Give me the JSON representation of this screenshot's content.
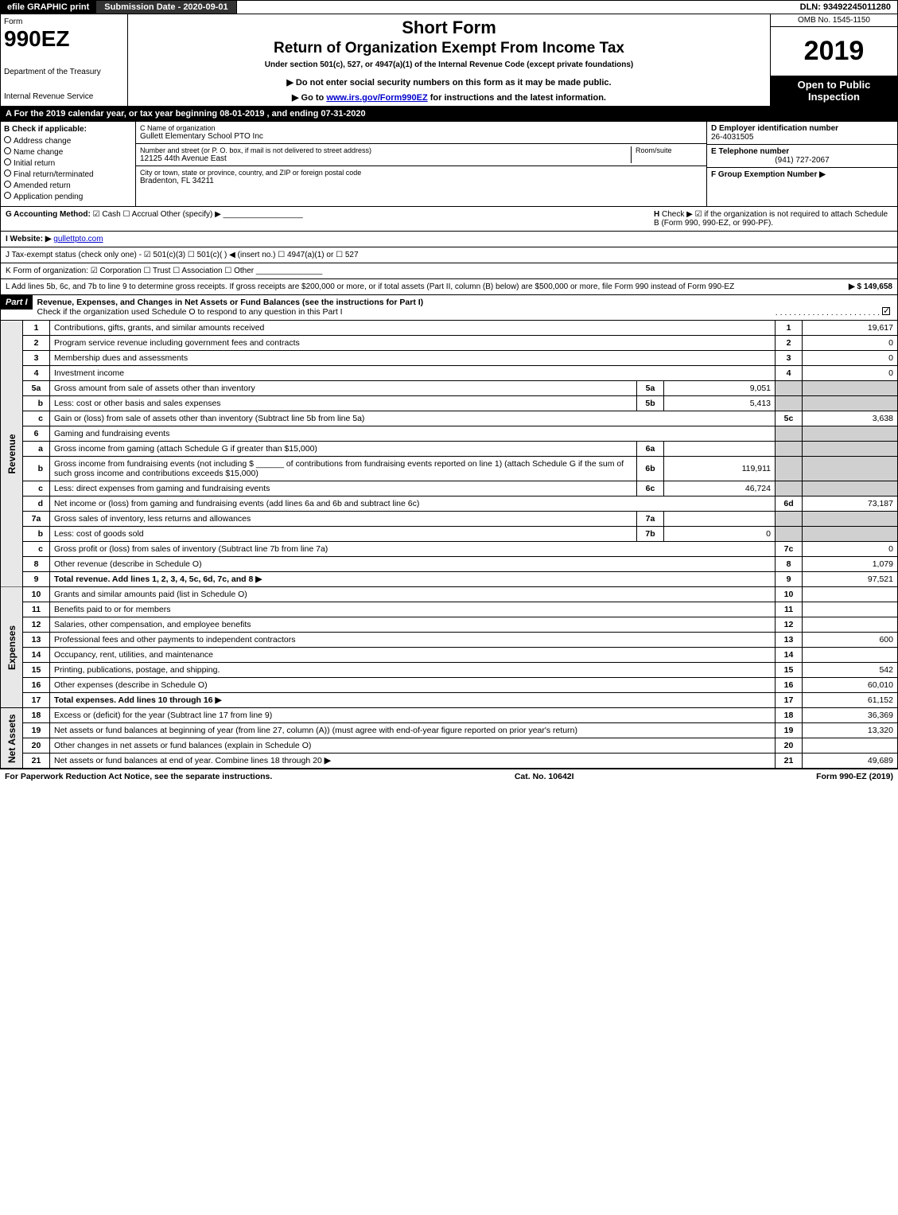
{
  "top_bar": {
    "efile": "efile GRAPHIC print",
    "submission_date_label": "Submission Date - 2020-09-01",
    "dln": "DLN: 93492245011280"
  },
  "header": {
    "form_label": "Form",
    "form_number": "990EZ",
    "dept": "Department of the Treasury",
    "irs": "Internal Revenue Service",
    "short_form": "Short Form",
    "title": "Return of Organization Exempt From Income Tax",
    "subtitle1": "Under section 501(c), 527, or 4947(a)(1) of the Internal Revenue Code (except private foundations)",
    "subtitle2": "▶ Do not enter social security numbers on this form as it may be made public.",
    "subtitle3_pre": "▶ Go to ",
    "subtitle3_link": "www.irs.gov/Form990EZ",
    "subtitle3_post": " for instructions and the latest information.",
    "omb": "OMB No. 1545-1150",
    "year": "2019",
    "open": "Open to Public Inspection"
  },
  "tax_year_text": "A  For the 2019 calendar year, or tax year beginning 08-01-2019 , and ending 07-31-2020",
  "box_b": {
    "title": "B  Check if applicable:",
    "items": [
      "Address change",
      "Name change",
      "Initial return",
      "Final return/terminated",
      "Amended return",
      "Application pending"
    ]
  },
  "box_c": {
    "name_label": "C Name of organization",
    "name": "Gullett Elementary School PTO Inc",
    "street_label": "Number and street (or P. O. box, if mail is not delivered to street address)",
    "room_label": "Room/suite",
    "street": "12125 44th Avenue East",
    "city_label": "City or town, state or province, country, and ZIP or foreign postal code",
    "city": "Bradenton, FL  34211"
  },
  "box_d": {
    "label": "D Employer identification number",
    "value": "26-4031505"
  },
  "box_e": {
    "label": "E Telephone number",
    "value": "(941) 727-2067"
  },
  "box_f": {
    "label": "F Group Exemption Number  ▶",
    "value": ""
  },
  "line_g": {
    "label": "G Accounting Method:",
    "opts": "☑ Cash  ☐ Accrual   Other (specify) ▶"
  },
  "line_h": {
    "label": "H",
    "text": "Check ▶ ☑ if the organization is not required to attach Schedule B (Form 990, 990-EZ, or 990-PF)."
  },
  "line_i": {
    "label": "I Website: ▶",
    "value": "gullettpto.com"
  },
  "line_j": {
    "text": "J Tax-exempt status (check only one) - ☑ 501(c)(3) ☐ 501(c)( ) ◀ (insert no.) ☐ 4947(a)(1) or ☐ 527"
  },
  "line_k": {
    "text": "K Form of organization:  ☑ Corporation  ☐ Trust  ☐ Association  ☐ Other"
  },
  "line_l": {
    "text": "L Add lines 5b, 6c, and 7b to line 9 to determine gross receipts. If gross receipts are $200,000 or more, or if total assets (Part II, column (B) below) are $500,000 or more, file Form 990 instead of Form 990-EZ",
    "amount": "▶ $ 149,658"
  },
  "part1": {
    "label": "Part I",
    "title": "Revenue, Expenses, and Changes in Net Assets or Fund Balances (see the instructions for Part I)",
    "check_text": "Check if the organization used Schedule O to respond to any question in this Part I",
    "side_labels": {
      "revenue": "Revenue",
      "expenses": "Expenses",
      "netassets": "Net Assets"
    },
    "rows": [
      {
        "no": "1",
        "desc": "Contributions, gifts, grants, and similar amounts received",
        "col": "1",
        "val": "19,617"
      },
      {
        "no": "2",
        "desc": "Program service revenue including government fees and contracts",
        "col": "2",
        "val": "0"
      },
      {
        "no": "3",
        "desc": "Membership dues and assessments",
        "col": "3",
        "val": "0"
      },
      {
        "no": "4",
        "desc": "Investment income",
        "col": "4",
        "val": "0"
      },
      {
        "no": "5a",
        "desc": "Gross amount from sale of assets other than inventory",
        "inner_no": "5a",
        "inner_val": "9,051",
        "shaded": true
      },
      {
        "no": "b",
        "sub": true,
        "desc": "Less: cost or other basis and sales expenses",
        "inner_no": "5b",
        "inner_val": "5,413",
        "shaded": true
      },
      {
        "no": "c",
        "sub": true,
        "desc": "Gain or (loss) from sale of assets other than inventory (Subtract line 5b from line 5a)",
        "col": "5c",
        "val": "3,638"
      },
      {
        "no": "6",
        "desc": "Gaming and fundraising events",
        "shaded": true
      },
      {
        "no": "a",
        "sub": true,
        "desc": "Gross income from gaming (attach Schedule G if greater than $15,000)",
        "inner_no": "6a",
        "inner_val": "",
        "shaded": true
      },
      {
        "no": "b",
        "sub": true,
        "desc": "Gross income from fundraising events (not including $ ______ of contributions from fundraising events reported on line 1) (attach Schedule G if the sum of such gross income and contributions exceeds $15,000)",
        "inner_no": "6b",
        "inner_val": "119,911",
        "shaded": true
      },
      {
        "no": "c",
        "sub": true,
        "desc": "Less: direct expenses from gaming and fundraising events",
        "inner_no": "6c",
        "inner_val": "46,724",
        "shaded": true
      },
      {
        "no": "d",
        "sub": true,
        "desc": "Net income or (loss) from gaming and fundraising events (add lines 6a and 6b and subtract line 6c)",
        "col": "6d",
        "val": "73,187"
      },
      {
        "no": "7a",
        "desc": "Gross sales of inventory, less returns and allowances",
        "inner_no": "7a",
        "inner_val": "",
        "shaded": true
      },
      {
        "no": "b",
        "sub": true,
        "desc": "Less: cost of goods sold",
        "inner_no": "7b",
        "inner_val": "0",
        "shaded": true
      },
      {
        "no": "c",
        "sub": true,
        "desc": "Gross profit or (loss) from sales of inventory (Subtract line 7b from line 7a)",
        "col": "7c",
        "val": "0"
      },
      {
        "no": "8",
        "desc": "Other revenue (describe in Schedule O)",
        "col": "8",
        "val": "1,079"
      },
      {
        "no": "9",
        "desc": "Total revenue. Add lines 1, 2, 3, 4, 5c, 6d, 7c, and 8",
        "bold": true,
        "arrow": true,
        "col": "9",
        "val": "97,521"
      }
    ],
    "exp_rows": [
      {
        "no": "10",
        "desc": "Grants and similar amounts paid (list in Schedule O)",
        "col": "10",
        "val": ""
      },
      {
        "no": "11",
        "desc": "Benefits paid to or for members",
        "col": "11",
        "val": ""
      },
      {
        "no": "12",
        "desc": "Salaries, other compensation, and employee benefits",
        "col": "12",
        "val": ""
      },
      {
        "no": "13",
        "desc": "Professional fees and other payments to independent contractors",
        "col": "13",
        "val": "600"
      },
      {
        "no": "14",
        "desc": "Occupancy, rent, utilities, and maintenance",
        "col": "14",
        "val": ""
      },
      {
        "no": "15",
        "desc": "Printing, publications, postage, and shipping.",
        "col": "15",
        "val": "542"
      },
      {
        "no": "16",
        "desc": "Other expenses (describe in Schedule O)",
        "col": "16",
        "val": "60,010"
      },
      {
        "no": "17",
        "desc": "Total expenses. Add lines 10 through 16",
        "bold": true,
        "arrow": true,
        "col": "17",
        "val": "61,152"
      }
    ],
    "na_rows": [
      {
        "no": "18",
        "desc": "Excess or (deficit) for the year (Subtract line 17 from line 9)",
        "col": "18",
        "val": "36,369"
      },
      {
        "no": "19",
        "desc": "Net assets or fund balances at beginning of year (from line 27, column (A)) (must agree with end-of-year figure reported on prior year's return)",
        "col": "19",
        "val": "13,320"
      },
      {
        "no": "20",
        "desc": "Other changes in net assets or fund balances (explain in Schedule O)",
        "col": "20",
        "val": ""
      },
      {
        "no": "21",
        "desc": "Net assets or fund balances at end of year. Combine lines 18 through 20",
        "arrow": true,
        "col": "21",
        "val": "49,689"
      }
    ]
  },
  "footer": {
    "left": "For Paperwork Reduction Act Notice, see the separate instructions.",
    "mid": "Cat. No. 10642I",
    "right": "Form 990-EZ (2019)"
  }
}
